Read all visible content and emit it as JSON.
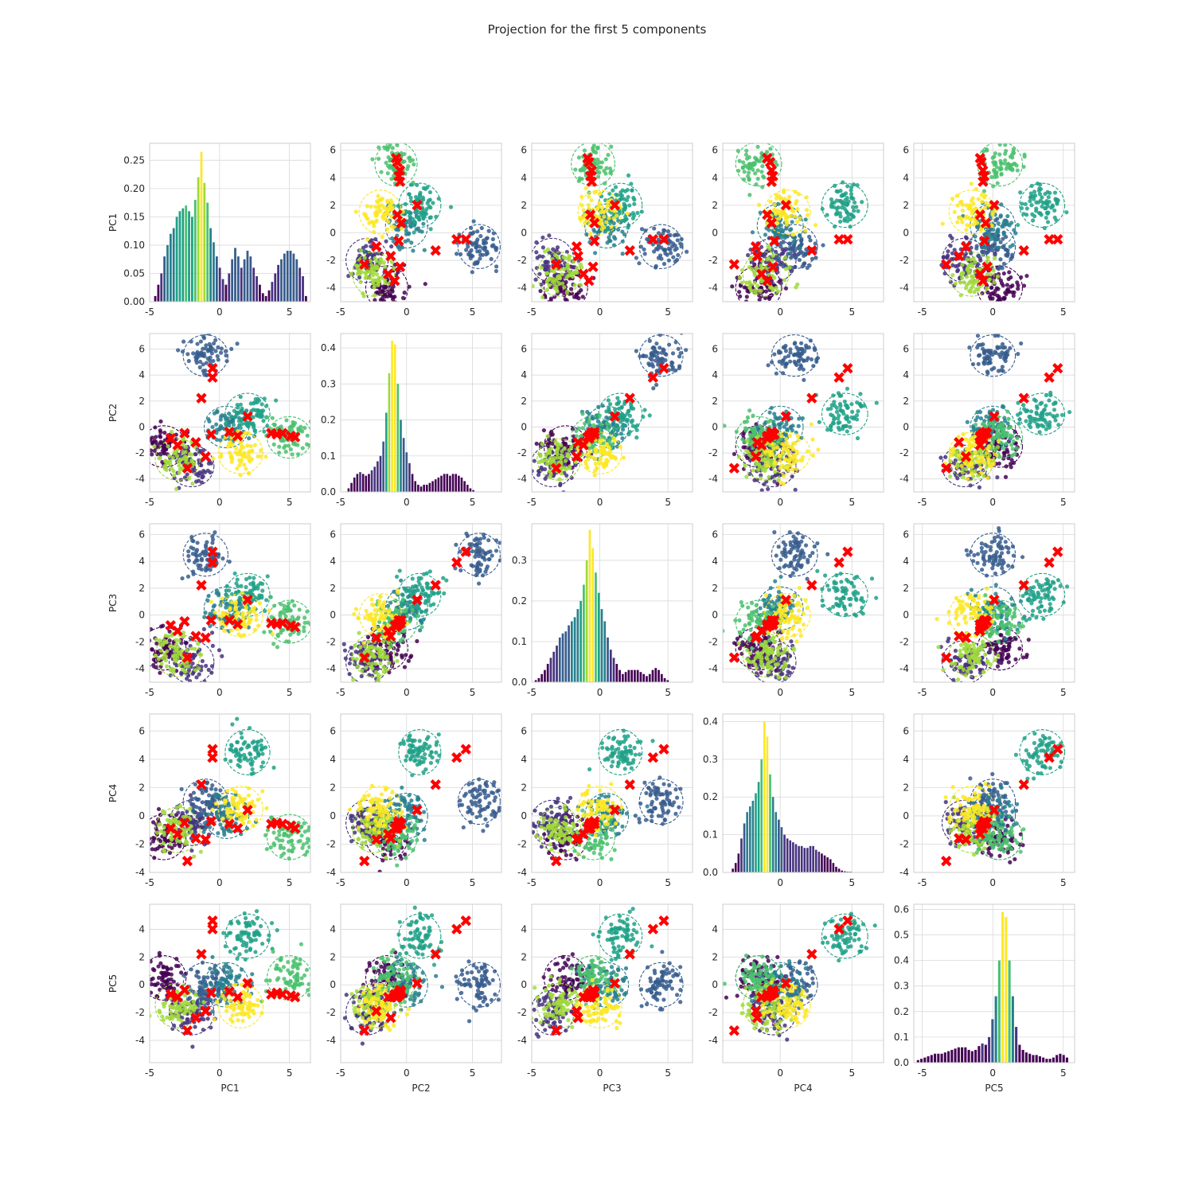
{
  "chart_data": {
    "type": "scatter",
    "title": "Projection for the first 5 components",
    "components": [
      "PC1",
      "PC2",
      "PC3",
      "PC4",
      "PC5"
    ],
    "diagonal_type": "bar",
    "grid": true,
    "cluster_palette": "viridis",
    "colors": {
      "grid": "#d9d9d9",
      "frame": "#cccccc",
      "centroid_marker": "#ff0000",
      "clusters": [
        "#440154",
        "#46327e",
        "#365c8d",
        "#277f8e",
        "#1fa187",
        "#4ac16d",
        "#a0da39",
        "#fde725"
      ]
    },
    "axis_ranges": {
      "PC1": [
        -5,
        6.5
      ],
      "PC2": [
        -5,
        7.2
      ],
      "PC3": [
        -5,
        6.8
      ],
      "PC4": [
        -4,
        7.2
      ],
      "PC5": [
        -5.6,
        5.8
      ]
    },
    "diag_ylim": {
      "PC1": [
        0,
        0.28
      ],
      "PC2": [
        0,
        0.44
      ],
      "PC3": [
        0,
        0.39
      ],
      "PC4": [
        0,
        0.42
      ],
      "PC5": [
        0,
        0.62
      ]
    },
    "xticks": [
      -5,
      0,
      5
    ],
    "yticks": {
      "PC1": [
        -4,
        -2,
        0,
        2,
        4,
        6
      ],
      "PC2": [
        -4,
        -2,
        0,
        2,
        4,
        6
      ],
      "PC3": [
        -4,
        -2,
        0,
        2,
        4,
        6
      ],
      "PC4": [
        -4,
        -2,
        0,
        2,
        4,
        6
      ],
      "PC5": [
        -4,
        -2,
        0,
        2,
        4
      ]
    },
    "diag_yticks": {
      "PC1": [
        "0.00",
        "0.05",
        "0.10",
        "0.15",
        "0.20",
        "0.25"
      ],
      "PC2": [
        "0.0",
        "0.1",
        "0.2",
        "0.3",
        "0.4"
      ],
      "PC3": [
        "0.0",
        "0.1",
        "0.2",
        "0.3"
      ],
      "PC4": [
        "0.0",
        "0.1",
        "0.2",
        "0.3",
        "0.4"
      ],
      "PC5": [
        "0.0",
        "0.1",
        "0.2",
        "0.3",
        "0.4",
        "0.5",
        "0.6"
      ]
    },
    "histograms": {
      "PC1": {
        "x0": -4.6,
        "step": 0.22,
        "values": [
          0.01,
          0.03,
          0.05,
          0.08,
          0.1,
          0.12,
          0.13,
          0.15,
          0.16,
          0.165,
          0.17,
          0.16,
          0.15,
          0.18,
          0.22,
          0.265,
          0.21,
          0.175,
          0.13,
          0.105,
          0.08,
          0.06,
          0.04,
          0.03,
          0.05,
          0.075,
          0.095,
          0.08,
          0.06,
          0.075,
          0.09,
          0.08,
          0.06,
          0.045,
          0.03,
          0.015,
          0.01,
          0.02,
          0.035,
          0.05,
          0.065,
          0.075,
          0.085,
          0.09,
          0.09,
          0.085,
          0.075,
          0.06,
          0.045,
          0.01
        ]
      },
      "PC2": {
        "x0": -4.4,
        "step": 0.22,
        "values": [
          0.01,
          0.025,
          0.04,
          0.05,
          0.055,
          0.05,
          0.045,
          0.05,
          0.06,
          0.07,
          0.085,
          0.1,
          0.14,
          0.22,
          0.33,
          0.42,
          0.41,
          0.3,
          0.2,
          0.15,
          0.11,
          0.08,
          0.05,
          0.03,
          0.02,
          0.015,
          0.02,
          0.02,
          0.025,
          0.03,
          0.035,
          0.04,
          0.045,
          0.05,
          0.05,
          0.045,
          0.05,
          0.05,
          0.045,
          0.04,
          0.03,
          0.02,
          0.01,
          0.005
        ]
      },
      "PC3": {
        "x0": -4.7,
        "step": 0.22,
        "values": [
          0.005,
          0.01,
          0.02,
          0.03,
          0.045,
          0.06,
          0.075,
          0.09,
          0.11,
          0.12,
          0.125,
          0.14,
          0.15,
          0.16,
          0.18,
          0.2,
          0.24,
          0.3,
          0.375,
          0.33,
          0.27,
          0.22,
          0.18,
          0.15,
          0.11,
          0.08,
          0.06,
          0.045,
          0.03,
          0.02,
          0.025,
          0.03,
          0.03,
          0.03,
          0.03,
          0.025,
          0.02,
          0.015,
          0.02,
          0.03,
          0.035,
          0.03,
          0.02,
          0.01,
          0.005
        ]
      },
      "PC4": {
        "x0": -3.3,
        "step": 0.2,
        "values": [
          0.01,
          0.025,
          0.05,
          0.09,
          0.13,
          0.16,
          0.175,
          0.19,
          0.21,
          0.24,
          0.3,
          0.4,
          0.36,
          0.26,
          0.2,
          0.16,
          0.14,
          0.12,
          0.1,
          0.09,
          0.085,
          0.08,
          0.075,
          0.07,
          0.07,
          0.065,
          0.065,
          0.07,
          0.07,
          0.06,
          0.055,
          0.05,
          0.045,
          0.04,
          0.035,
          0.025,
          0.015,
          0.01,
          0.005,
          0.003,
          0.002,
          0.002
        ]
      },
      "PC5": {
        "x0": -5.3,
        "step": 0.24,
        "values": [
          0.01,
          0.015,
          0.02,
          0.025,
          0.03,
          0.035,
          0.035,
          0.035,
          0.04,
          0.045,
          0.05,
          0.055,
          0.06,
          0.06,
          0.06,
          0.05,
          0.045,
          0.05,
          0.065,
          0.075,
          0.07,
          0.1,
          0.17,
          0.26,
          0.4,
          0.59,
          0.57,
          0.4,
          0.26,
          0.14,
          0.07,
          0.05,
          0.04,
          0.035,
          0.03,
          0.03,
          0.025,
          0.02,
          0.015,
          0.015,
          0.02,
          0.03,
          0.035,
          0.03,
          0.02
        ]
      }
    },
    "cluster_centers": {
      "PC1": [
        -0.5,
        -0.5,
        -1.3,
        -2.5,
        -3.5,
        -3.0,
        -2.3,
        -1.7,
        -0.6,
        -1.0,
        0.7,
        1.3,
        2.0,
        3.7,
        4.1,
        4.5,
        5.1,
        5.4
      ],
      "PC2": [
        4.5,
        3.8,
        2.2,
        -0.5,
        -0.9,
        -1.4,
        -3.2,
        -1.2,
        -0.6,
        -2.3,
        -0.4,
        -0.7,
        0.8,
        -0.5,
        -0.6,
        -0.5,
        -0.7,
        -0.8
      ],
      "PC3": [
        4.7,
        3.9,
        2.2,
        -0.5,
        -0.8,
        -1.2,
        -3.2,
        -1.6,
        -0.4,
        -1.7,
        -0.4,
        -0.7,
        1.1,
        -0.6,
        -0.7,
        -0.6,
        -0.8,
        -0.9
      ],
      "PC4": [
        4.7,
        4.1,
        2.2,
        -0.5,
        -0.9,
        -1.3,
        -3.2,
        -1.6,
        -0.4,
        -1.7,
        -0.6,
        -0.9,
        0.4,
        -0.6,
        -0.5,
        -0.6,
        -0.7,
        -0.9
      ],
      "PC5": [
        4.6,
        4.0,
        2.2,
        -0.4,
        -0.7,
        -0.9,
        -3.3,
        -2.4,
        -0.6,
        -1.9,
        -0.5,
        -0.9,
        0.1,
        -0.7,
        -0.6,
        -0.7,
        -0.8,
        -0.9
      ]
    },
    "cluster_points_sample": [
      {
        "PC1": -4.0,
        "PC2": -1.5,
        "PC3": -2.5,
        "PC4": -1.5,
        "PC5": 0.5
      },
      {
        "PC1": -2.0,
        "PC2": -3.0,
        "PC3": -3.5,
        "PC4": -0.5,
        "PC5": -2.0
      },
      {
        "PC1": -1.0,
        "PC2": 5.5,
        "PC3": 4.5,
        "PC4": 1.0,
        "PC5": 0.0
      },
      {
        "PC1": 0.5,
        "PC2": 0.0,
        "PC3": 0.5,
        "PC4": 0.0,
        "PC5": 0.0
      },
      {
        "PC1": 2.0,
        "PC2": 1.0,
        "PC3": 1.5,
        "PC4": 4.5,
        "PC5": 3.5
      },
      {
        "PC1": 5.0,
        "PC2": -0.8,
        "PC3": -0.5,
        "PC4": -1.5,
        "PC5": 0.5
      },
      {
        "PC1": -3.0,
        "PC2": -2.5,
        "PC3": -3.0,
        "PC4": -1.0,
        "PC5": -1.5
      },
      {
        "PC1": 1.5,
        "PC2": -2.0,
        "PC3": 0.0,
        "PC4": 0.5,
        "PC5": -1.5
      }
    ]
  }
}
